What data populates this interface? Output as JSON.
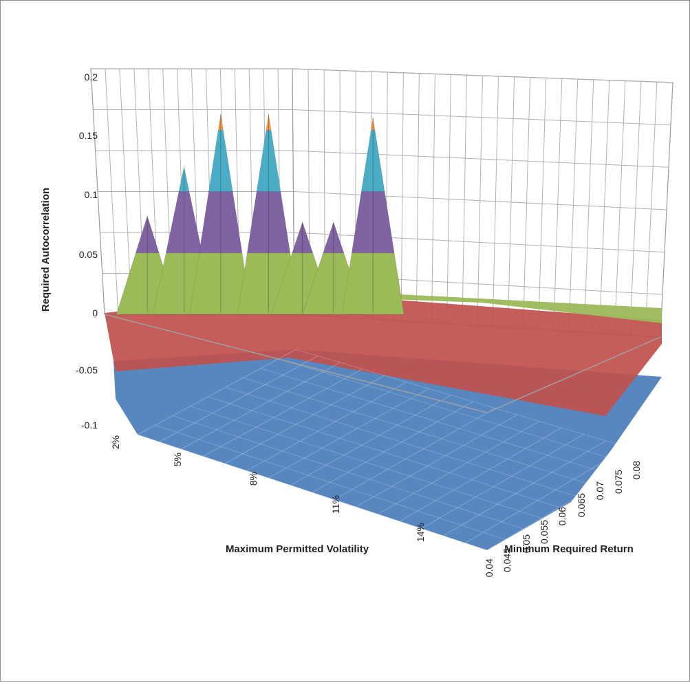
{
  "chart_data": {
    "type": "surface",
    "zlabel": "Required Autocorrelation",
    "xlabel": "Maximum Permitted Volatility",
    "ylabel": "Minimum Required Return",
    "z_ticks": [
      "0.2",
      "0.15",
      "0.1",
      "0.05",
      "0",
      "-0.05",
      "-0.1"
    ],
    "zlim": [
      -0.1,
      0.2
    ],
    "x_ticks": [
      "2%",
      "5%",
      "8%",
      "11%",
      "14%"
    ],
    "y_ticks": [
      "0.04",
      "0.045",
      "0.05",
      "0.055",
      "0.06",
      "0.065",
      "0.07",
      "0.075",
      "0.08"
    ],
    "bands": [
      {
        "range": [
          -0.1,
          -0.05
        ],
        "color": "#4f81bd"
      },
      {
        "range": [
          -0.05,
          0
        ],
        "color": "#c0504d"
      },
      {
        "range": [
          0,
          0.05
        ],
        "color": "#9bbb59"
      },
      {
        "range": [
          0.05,
          0.1
        ],
        "color": "#8064a2"
      },
      {
        "range": [
          0.1,
          0.15
        ],
        "color": "#4bacc6"
      },
      {
        "range": [
          0.15,
          0.2
        ],
        "color": "#f79646"
      }
    ],
    "peaks": [
      {
        "volatility": "3.2%",
        "value": 0.08
      },
      {
        "volatility": "4.5%",
        "value": 0.12
      },
      {
        "volatility": "5.8%",
        "value": 0.163
      },
      {
        "volatility": "7.5%",
        "value": 0.163
      },
      {
        "volatility": "8.7%",
        "value": 0.075
      },
      {
        "volatility": "9.8%",
        "value": 0.075
      },
      {
        "volatility": "11.2%",
        "value": 0.16
      }
    ]
  }
}
